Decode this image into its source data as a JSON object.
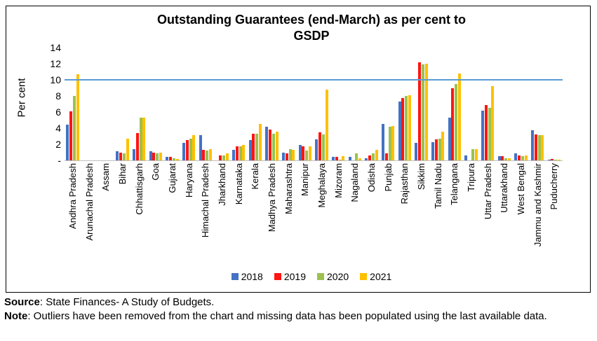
{
  "title": {
    "line1": "Outstanding Guarantees (end-March) as per cent to",
    "line2": "GSDP"
  },
  "y_axis": {
    "label": "Per cent",
    "tick_values": [
      14,
      12,
      10,
      8,
      6,
      4,
      2,
      0
    ],
    "tick_labels": [
      "14",
      "12",
      "10",
      "8",
      "6",
      "4",
      "2",
      "-"
    ]
  },
  "legend": {
    "position": "bottom-center",
    "items": [
      {
        "label": "2018",
        "color": "#4472C4"
      },
      {
        "label": "2019",
        "color": "#FF1511"
      },
      {
        "label": "2020",
        "color": "#9CC14F"
      },
      {
        "label": "2021",
        "color": "#FFC000"
      }
    ]
  },
  "reference_line": {
    "value": 10,
    "color": "#5B9BD5"
  },
  "footer": {
    "source_label": "Source",
    "source_text": ": State Finances- A Study of Budgets.",
    "note_label": "Note",
    "note_text": ": Outliers have been removed from the chart and missing data has been populated using the last available data."
  },
  "chart_data": {
    "type": "bar",
    "title": "Outstanding Guarantees (end-March) as per cent to GSDP",
    "xlabel": "",
    "ylabel": "Per cent",
    "ylim": [
      0,
      14
    ],
    "grid": false,
    "reference_line_y": 10,
    "legend_position": "bottom",
    "categories": [
      "Andhra Pradesh",
      "Arunachal Pradesh",
      "Assam",
      "Bihar",
      "Chhattisgarh",
      "Goa",
      "Gujarat",
      "Haryana",
      "Himachal Pradesh",
      "Jharkhand",
      "Karnataka",
      "Kerala",
      "Madhya Pradesh",
      "Maharashtra",
      "Manipur",
      "Meghalaya",
      "Mizoram",
      "Nagaland",
      "Odisha",
      "Punjab",
      "Rajasthan",
      "Sikkim",
      "Tamil Nadu",
      "Telangana",
      "Tripura",
      "Uttar Pradesh",
      "Uttarakhand",
      "West Bengal",
      "Jammu and Kashmir",
      "Puducherry"
    ],
    "series": [
      {
        "name": "2018",
        "color": "#4472C4",
        "values": [
          4.4,
          0,
          0,
          1.1,
          1.4,
          1.1,
          0.4,
          2.2,
          3.1,
          0,
          1.3,
          2.5,
          4.2,
          1.0,
          1.9,
          2.6,
          0.4,
          0.4,
          0.3,
          4.5,
          7.3,
          2.2,
          2.3,
          5.3,
          0.6,
          6.2,
          0.5,
          0.9,
          3.7,
          0.1
        ]
      },
      {
        "name": "2019",
        "color": "#FF1511",
        "values": [
          6.1,
          0,
          0,
          1.0,
          3.4,
          1.0,
          0.4,
          2.5,
          1.3,
          0.6,
          1.7,
          3.3,
          3.8,
          0.9,
          1.7,
          3.5,
          0.4,
          0,
          0.6,
          0.9,
          7.7,
          12.2,
          2.6,
          9.0,
          0,
          6.9,
          0.5,
          0.6,
          3.2,
          0.2
        ]
      },
      {
        "name": "2020",
        "color": "#9CC14F",
        "values": [
          8.0,
          0,
          0,
          0.9,
          5.3,
          0.9,
          0.3,
          2.7,
          1.2,
          0.6,
          1.7,
          3.3,
          3.3,
          1.4,
          1.2,
          3.2,
          0.1,
          0.9,
          0.9,
          4.2,
          8.0,
          11.9,
          2.7,
          9.5,
          1.4,
          6.5,
          0.3,
          0.5,
          3.1,
          0.1
        ]
      },
      {
        "name": "2021",
        "color": "#FFC000",
        "values": [
          10.7,
          0,
          0,
          2.7,
          5.3,
          1.0,
          0.2,
          3.1,
          1.4,
          0.9,
          1.9,
          4.5,
          3.6,
          1.3,
          1.7,
          8.8,
          0.5,
          0.3,
          1.3,
          4.3,
          8.1,
          12.0,
          3.6,
          10.8,
          1.4,
          9.2,
          0.3,
          0.6,
          3.1,
          0.1
        ]
      }
    ]
  }
}
